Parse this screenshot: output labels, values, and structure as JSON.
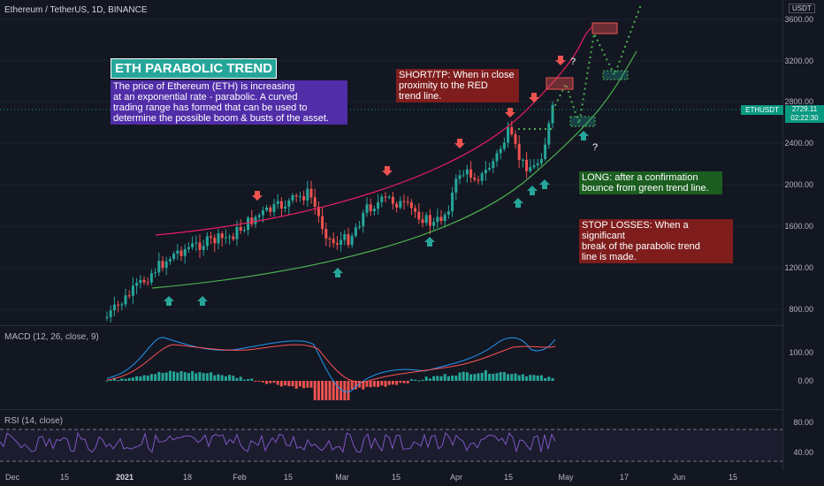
{
  "header": {
    "symbol_line": "Ethereum / TetherUS, 1D, BINANCE",
    "quote_currency": "USDT"
  },
  "indicators": {
    "macd_label": "MACD (12, 26, close, 9)",
    "rsi_label": "RSI (14, close)"
  },
  "price_axis": {
    "ticks": [
      "3600.00",
      "3200.00",
      "2800.00",
      "2400.00",
      "2000.00",
      "1600.00",
      "1200.00",
      "800.00"
    ],
    "last_price_ticker": "ETHUSDT",
    "last_price": "2729.11",
    "countdown": "02:22:30"
  },
  "macd_axis": {
    "ticks": [
      "100.00",
      "0.00"
    ]
  },
  "rsi_axis": {
    "ticks": [
      "80.00",
      "40.00"
    ]
  },
  "time_axis": {
    "labels": [
      "Dec",
      "15",
      "2021",
      "18",
      "Feb",
      "15",
      "Mar",
      "15",
      "Apr",
      "15",
      "May",
      "17",
      "Jun",
      "15"
    ]
  },
  "annotations": {
    "title": "ETH PARABOLIC TREND",
    "intro": "The price of Ethereum (ETH) is increasing\nat an exponential rate - parabolic. A curved\ntrading range has formed that can be used to\ndetermine the possible boom & busts of the asset.",
    "short_tp": "SHORT/TP: When in close\nproximity to the RED\ntrend line.",
    "long": "LONG: after a confirmation\nbounce from green trend line.",
    "stop_losses": "STOP LOSSES: When a significant\n break of the parabolic trend\nline is made.",
    "question_mark": "?"
  },
  "colors": {
    "background": "#131722",
    "up_candle": "#26a69a",
    "down_candle": "#ef5350",
    "red_trendline": "#e91e63",
    "green_trendline": "#4caf50",
    "macd_line": "#2196f3",
    "signal_line": "#ff5252",
    "rsi_line": "#7e57c2",
    "intro_box": "#512da8",
    "short_box": "#7f1d1d",
    "long_box": "#1b5e20",
    "stop_box": "#7f1d1d"
  }
}
